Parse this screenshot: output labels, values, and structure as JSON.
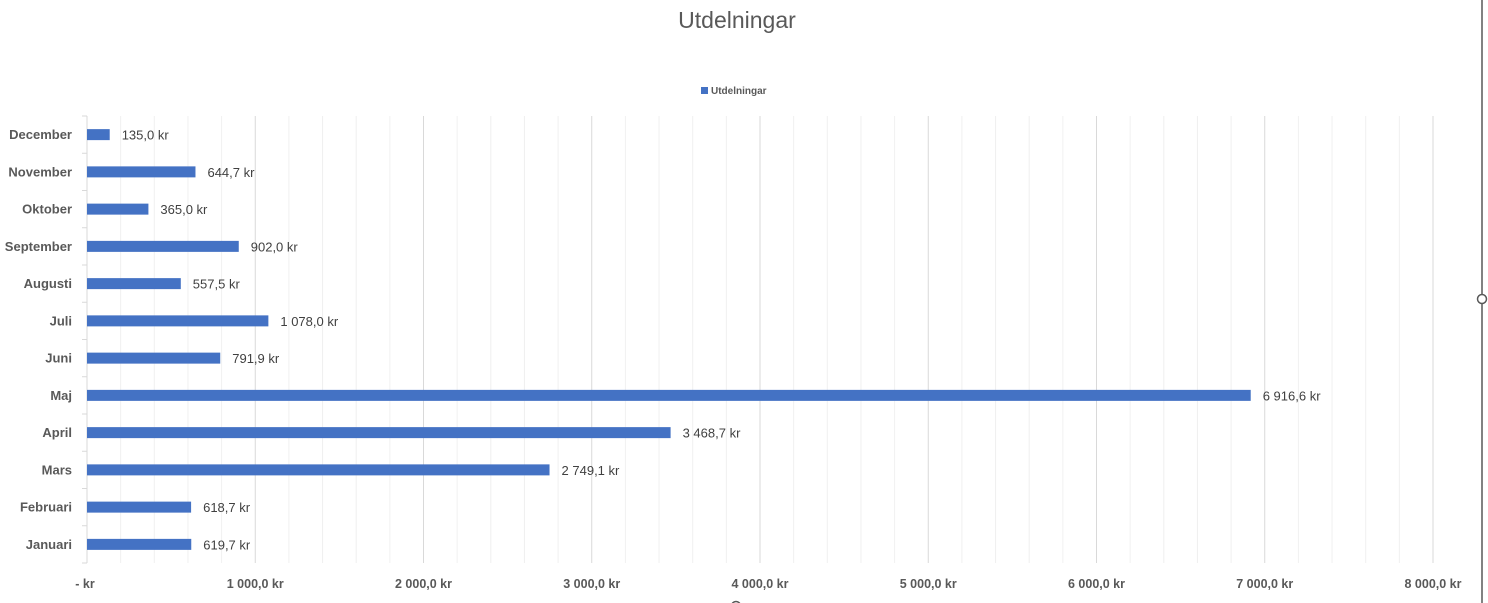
{
  "chart_data": {
    "type": "bar",
    "orientation": "horizontal",
    "title": "Utdelningar",
    "legend": {
      "entries": [
        "Utdelningar"
      ],
      "placement": "top"
    },
    "categories": [
      "Januari",
      "Februari",
      "Mars",
      "April",
      "Maj",
      "Juni",
      "Juli",
      "Augusti",
      "September",
      "Oktober",
      "November",
      "December"
    ],
    "series": [
      {
        "name": "Utdelningar",
        "color": "#4472C4",
        "values": [
          619.7,
          618.7,
          2749.1,
          3468.7,
          6916.6,
          791.9,
          1078.0,
          557.5,
          902.0,
          365.0,
          644.7,
          135.0
        ],
        "labels": [
          "619,7 kr",
          "618,7 kr",
          "2 749,1 kr",
          "3 468,7 kr",
          "6 916,6 kr",
          "791,9 kr",
          "1 078,0 kr",
          "557,5 kr",
          "902,0 kr",
          "365,0 kr",
          "644,7 kr",
          "135,0 kr"
        ]
      }
    ],
    "xlim": [
      0,
      8000
    ],
    "x_ticks": [
      0,
      1000,
      2000,
      3000,
      4000,
      5000,
      6000,
      7000,
      8000
    ],
    "x_tick_labels": [
      "-   kr",
      "1 000,0 kr",
      "2 000,0 kr",
      "3 000,0 kr",
      "4 000,0 kr",
      "5 000,0 kr",
      "6 000,0 kr",
      "7 000,0 kr",
      "8 000,0 kr"
    ],
    "grid": {
      "major": 1000,
      "minor": 200
    },
    "xlabel": "",
    "ylabel": ""
  }
}
